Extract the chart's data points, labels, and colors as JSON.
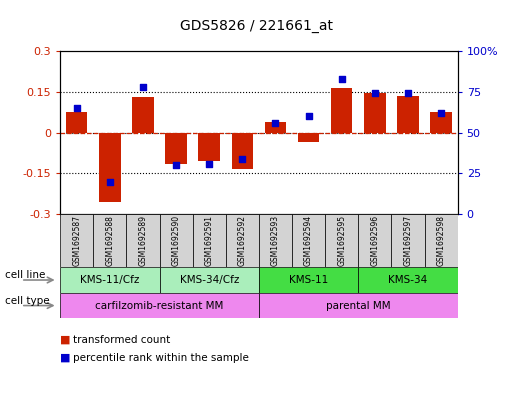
{
  "title": "GDS5826 / 221661_at",
  "samples": [
    "GSM1692587",
    "GSM1692588",
    "GSM1692589",
    "GSM1692590",
    "GSM1692591",
    "GSM1692592",
    "GSM1692593",
    "GSM1692594",
    "GSM1692595",
    "GSM1692596",
    "GSM1692597",
    "GSM1692598"
  ],
  "transformed_count": [
    0.075,
    -0.255,
    0.13,
    -0.115,
    -0.105,
    -0.135,
    0.04,
    -0.035,
    0.165,
    0.145,
    0.135,
    0.075
  ],
  "percentile_rank": [
    65,
    20,
    78,
    30,
    31,
    34,
    56,
    60,
    83,
    74,
    74,
    62
  ],
  "cell_line_groups": [
    {
      "label": "KMS-11/Cfz",
      "start": 0,
      "end": 2,
      "color": "#aaeebb"
    },
    {
      "label": "KMS-34/Cfz",
      "start": 3,
      "end": 5,
      "color": "#aaeebb"
    },
    {
      "label": "KMS-11",
      "start": 6,
      "end": 8,
      "color": "#44dd44"
    },
    {
      "label": "KMS-34",
      "start": 9,
      "end": 11,
      "color": "#44dd44"
    }
  ],
  "cell_type_groups": [
    {
      "label": "carfilzomib-resistant MM",
      "start": 0,
      "end": 5,
      "color": "#ee88ee"
    },
    {
      "label": "parental MM",
      "start": 6,
      "end": 11,
      "color": "#ee88ee"
    }
  ],
  "bar_color": "#cc2200",
  "dot_color": "#0000cc",
  "ylim_left": [
    -0.3,
    0.3
  ],
  "ylim_right": [
    0,
    100
  ],
  "yticks_left": [
    -0.3,
    -0.15,
    0,
    0.15,
    0.3
  ],
  "ytick_labels_left": [
    "-0.3",
    "-0.15",
    "0",
    "0.15",
    "0.3"
  ],
  "yticks_right": [
    0,
    25,
    50,
    75,
    100
  ],
  "ytick_labels_right": [
    "0",
    "25",
    "50",
    "75",
    "100%"
  ],
  "background_color": "#ffffff",
  "hline_color": "#cc2200",
  "dotted_lines": [
    0.15,
    0.0,
    -0.15
  ]
}
